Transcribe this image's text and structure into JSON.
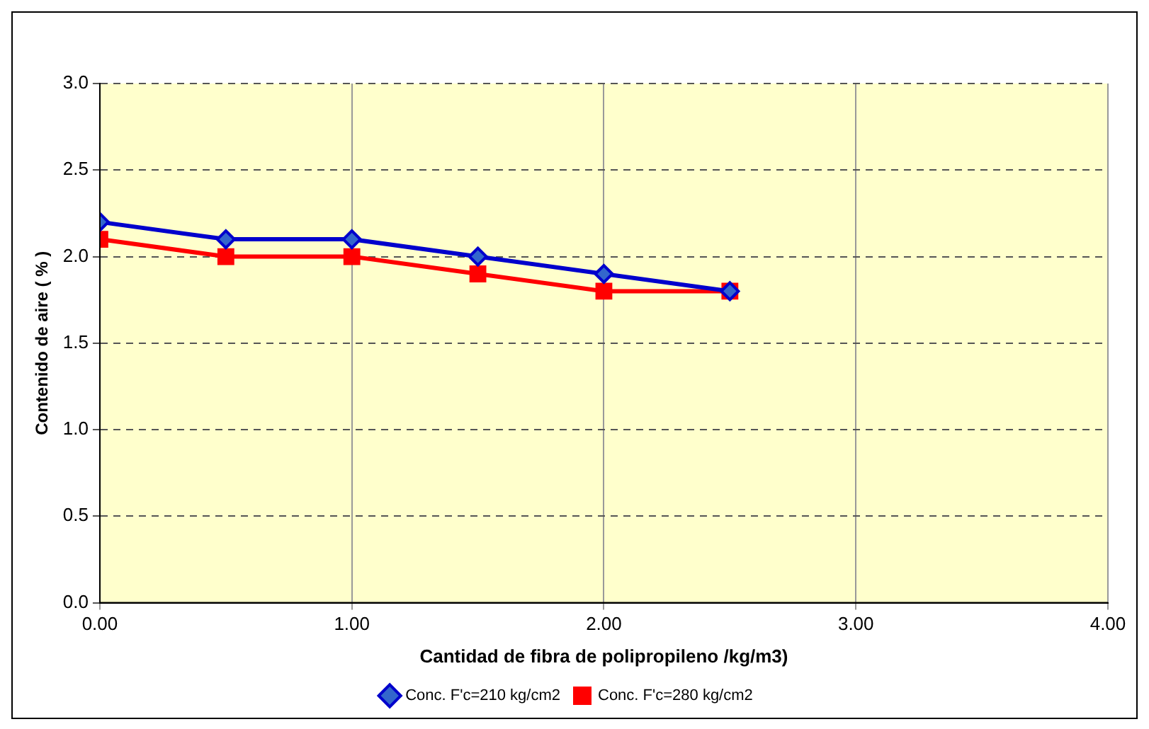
{
  "chart_data": {
    "type": "line",
    "xlabel": "Cantidad de fibra de polipropileno /kg/m3)",
    "ylabel": "Contenido de aire ( % )",
    "x": [
      0,
      0.5,
      1,
      1.5,
      2,
      2.5
    ],
    "series": [
      {
        "name": "Conc. F'c=210 kg/cm2",
        "color": "#0000cc",
        "values": [
          2.2,
          2.1,
          2.1,
          2.0,
          1.9,
          1.8
        ],
        "marker": "diamond"
      },
      {
        "name": "Conc. F'c=280 kg/cm2",
        "color": "#ff0000",
        "values": [
          2.1,
          2.0,
          2.0,
          1.9,
          1.8,
          1.8
        ],
        "marker": "square"
      }
    ],
    "xlim": [
      0,
      4
    ],
    "xticks": [
      {
        "value": 0,
        "label": "0.00"
      },
      {
        "value": 1,
        "label": "1.00"
      },
      {
        "value": 2,
        "label": "2.00"
      },
      {
        "value": 3,
        "label": "3.00"
      },
      {
        "value": 4,
        "label": "4.00"
      }
    ],
    "ylim": [
      0,
      3
    ],
    "yticks": [
      {
        "value": 0,
        "label": "0.0"
      },
      {
        "value": 0.5,
        "label": "0.5"
      },
      {
        "value": 1,
        "label": "1.0"
      },
      {
        "value": 1.5,
        "label": "1.5"
      },
      {
        "value": 2,
        "label": "2.0"
      },
      {
        "value": 2.5,
        "label": "2.5"
      },
      {
        "value": 3,
        "label": "3.0"
      }
    ],
    "grid": true,
    "legend": "bottom"
  }
}
